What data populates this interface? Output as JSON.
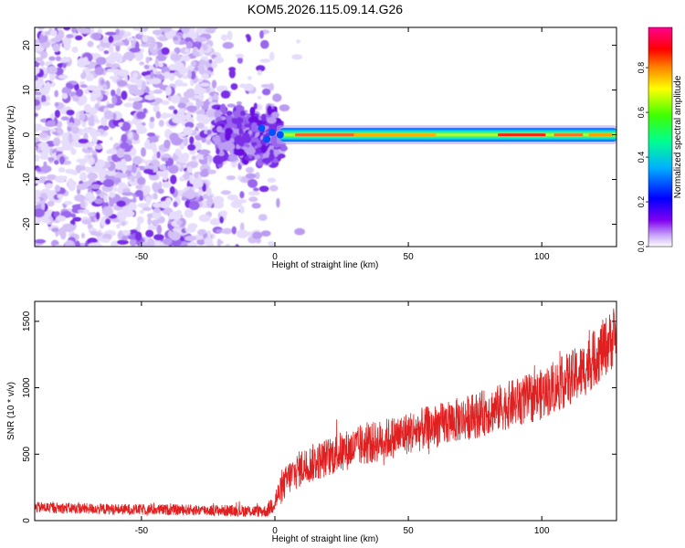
{
  "title": "KOM5.2026.115.09.14.G26",
  "chart_data": [
    {
      "type": "heatmap",
      "xlabel": "Height of straight line (km)",
      "ylabel": "Frequency (Hz)",
      "xlim": [
        -90,
        128
      ],
      "ylim": [
        -25,
        24
      ],
      "x_ticks": [
        -50,
        0,
        50,
        100
      ],
      "y_ticks": [
        -20,
        -10,
        0,
        10,
        20
      ],
      "colorbar": {
        "label": "Normalized spectral amplitude",
        "range": [
          0.0,
          0.98
        ],
        "ticks": [
          0.0,
          0.2,
          0.4,
          0.6,
          0.8
        ],
        "colors": [
          "#ffffff",
          "#d8c8f8",
          "#9a50f0",
          "#7000e0",
          "#0000ff",
          "#00c8ff",
          "#00ff80",
          "#ffff00",
          "#ff8000",
          "#ff0000",
          "#ff00a0"
        ]
      },
      "regions": [
        {
          "x_range": [
            -90,
            -22
          ],
          "y_range": [
            -25,
            24
          ],
          "amplitude": 0.1,
          "pattern": "speckle noise"
        },
        {
          "x_range": [
            -22,
            2
          ],
          "y_range": [
            -7,
            7
          ],
          "amplitude": 0.2,
          "pattern": "dense speckle"
        },
        {
          "x_range": [
            2,
            128
          ],
          "y_center": 0,
          "halfwidth_hz": 1.5,
          "amplitude": 0.85,
          "pattern": "narrow tone"
        }
      ]
    },
    {
      "type": "line",
      "xlabel": "Height of straight line (km)",
      "ylabel": "SNR (10 * v/v)",
      "xlim": [
        -90,
        128
      ],
      "ylim": [
        0,
        1650
      ],
      "x_ticks": [
        -50,
        0,
        50,
        100
      ],
      "y_ticks": [
        0,
        500,
        1000,
        1500
      ],
      "series": [
        {
          "color": "#e02020",
          "trend_x": [
            -90,
            -60,
            -30,
            -3,
            0,
            5,
            10,
            25,
            50,
            75,
            100,
            115,
            128
          ],
          "trend_y": [
            100,
            85,
            80,
            70,
            150,
            320,
            400,
            520,
            660,
            790,
            950,
            1120,
            1400
          ],
          "noise_amplitude": [
            40,
            40,
            40,
            45,
            90,
            130,
            140,
            150,
            160,
            170,
            190,
            210,
            230
          ]
        }
      ]
    }
  ]
}
